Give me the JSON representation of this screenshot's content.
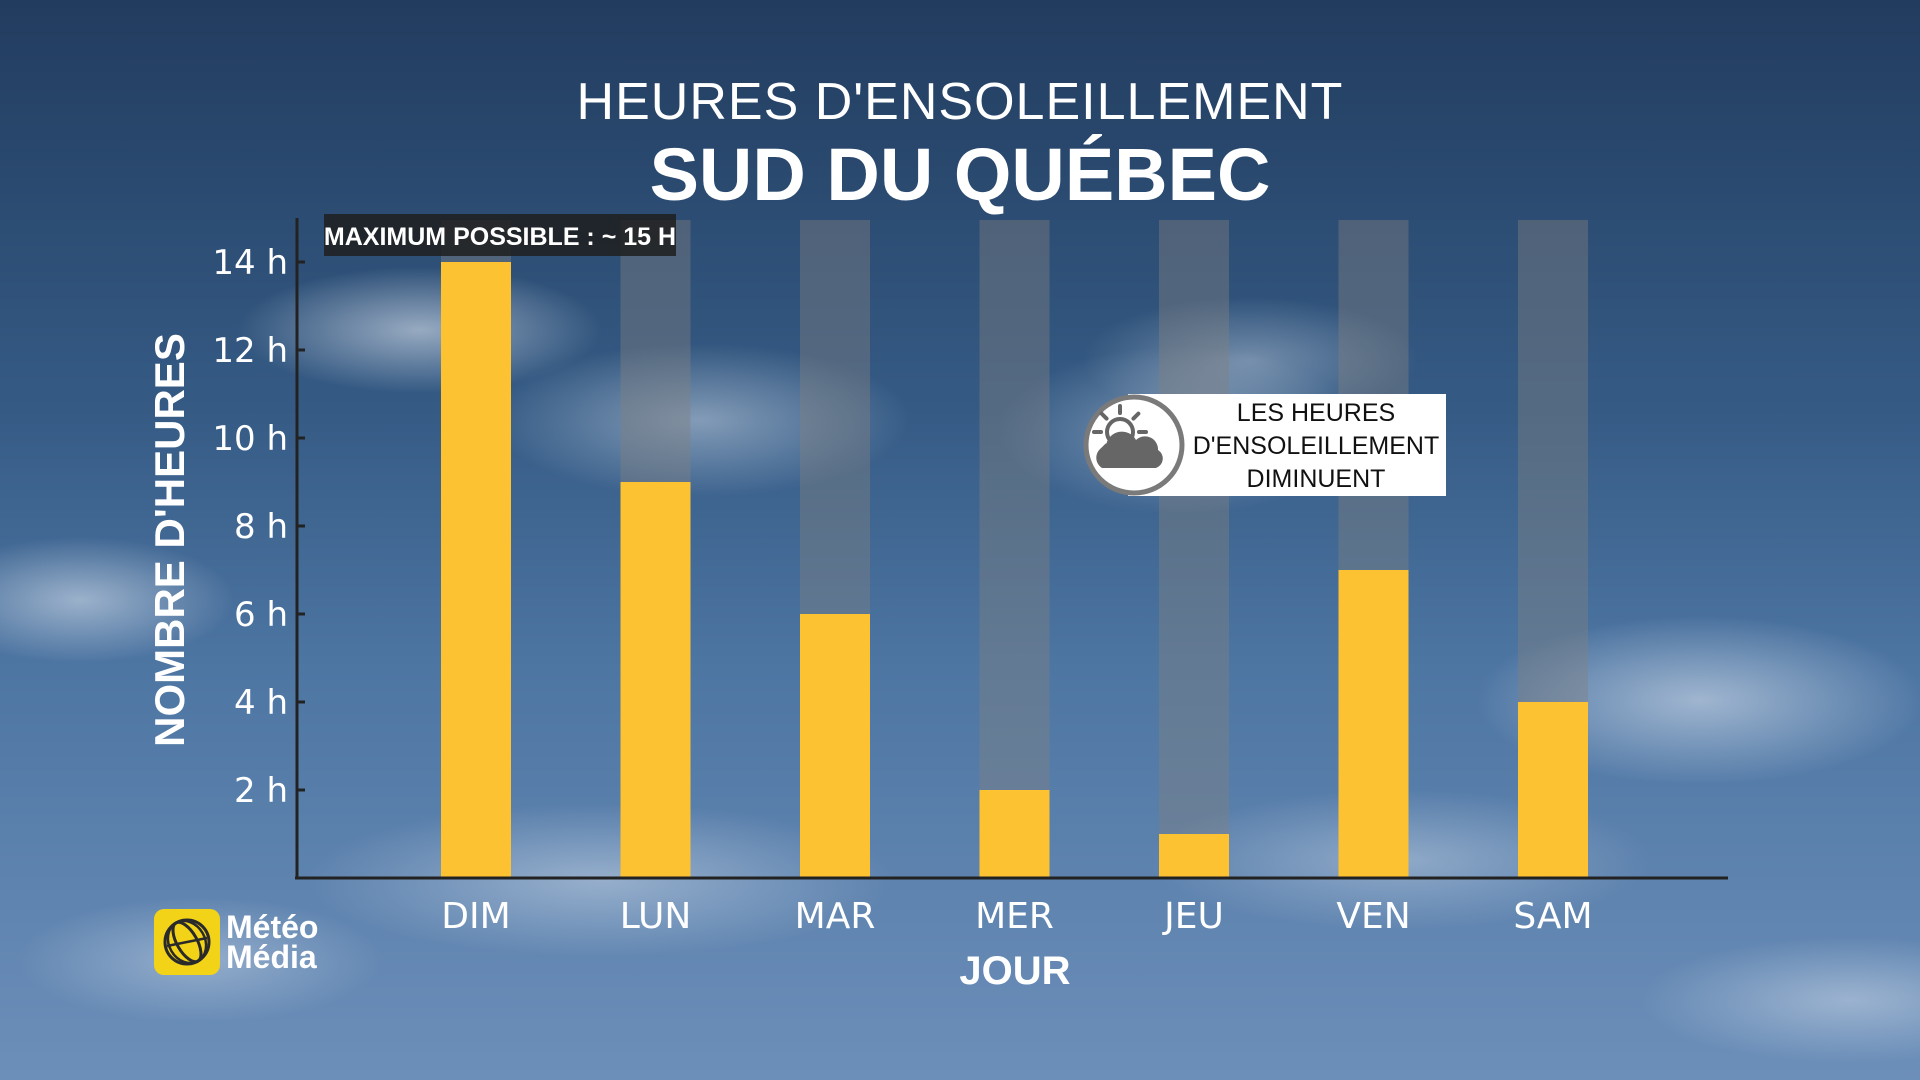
{
  "title": "HEURES D'ENSOLEILLEMENT",
  "subtitle": "SUD DU QUÉBEC",
  "logo": {
    "line1": "Météo",
    "line2": "Média"
  },
  "chart_data": {
    "type": "bar",
    "title": "HEURES D'ENSOLEILLEMENT",
    "subtitle": "SUD DU QUÉBEC",
    "xlabel": "JOUR",
    "ylabel": "NOMBRE D'HEURES",
    "categories": [
      "DIM",
      "LUN",
      "MAR",
      "MER",
      "JEU",
      "VEN",
      "SAM"
    ],
    "values": [
      14,
      9,
      6,
      2,
      1,
      7,
      4
    ],
    "max_possible": 15,
    "max_label": "MAXIMUM POSSIBLE : ~ 15 H",
    "ylim": [
      0,
      15
    ],
    "yticks": [
      2,
      4,
      6,
      8,
      10,
      12,
      14
    ],
    "ytick_labels": [
      "2 h",
      "4 h",
      "6 h",
      "8 h",
      "10 h",
      "12 h",
      "14 h"
    ],
    "annotation": {
      "lines": [
        "LES HEURES",
        "D'ENSOLEILLEMENT",
        "DIMINUENT"
      ],
      "icon": "sun-behind-cloud-icon"
    },
    "grid": false,
    "bar_color": "#fdc231",
    "background_bar_color": "#808080"
  }
}
